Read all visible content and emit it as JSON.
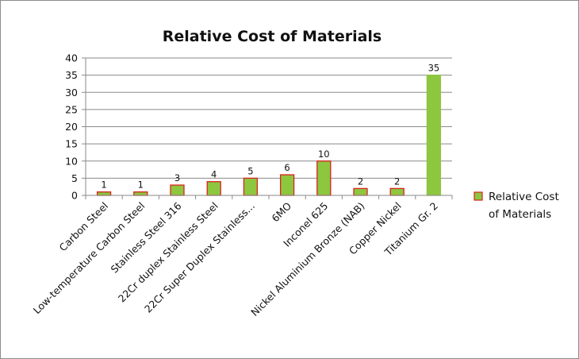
{
  "chart_data": {
    "type": "bar",
    "title": "Relative Cost of Materials",
    "xlabel": "",
    "ylabel": "",
    "ylim": [
      0,
      40
    ],
    "yticks": [
      0,
      5,
      10,
      15,
      20,
      25,
      30,
      35,
      40
    ],
    "grid": true,
    "legend_position": "right",
    "categories": [
      "Carbon Steel",
      "Low-temperature Carbon Steel",
      "Stainless Steel 316",
      "22Cr duplex Stainless Steel",
      "22Cr Super Duplex Stainless...",
      "6MO",
      "Inconel 625",
      "Nickel Aluminium Bronze (NAB)",
      "Copper Nickel",
      "Titanium Gr. 2"
    ],
    "series": [
      {
        "name": "Relative Cost of Materials",
        "values": [
          1,
          1,
          3,
          4,
          5,
          6,
          10,
          2,
          2,
          35
        ],
        "color": "#8dc63f",
        "border_color": "#d9231d",
        "highlight_border_color": "#8dc63f"
      }
    ],
    "legend_lines": [
      "Relative Cost",
      "of Materials"
    ]
  }
}
